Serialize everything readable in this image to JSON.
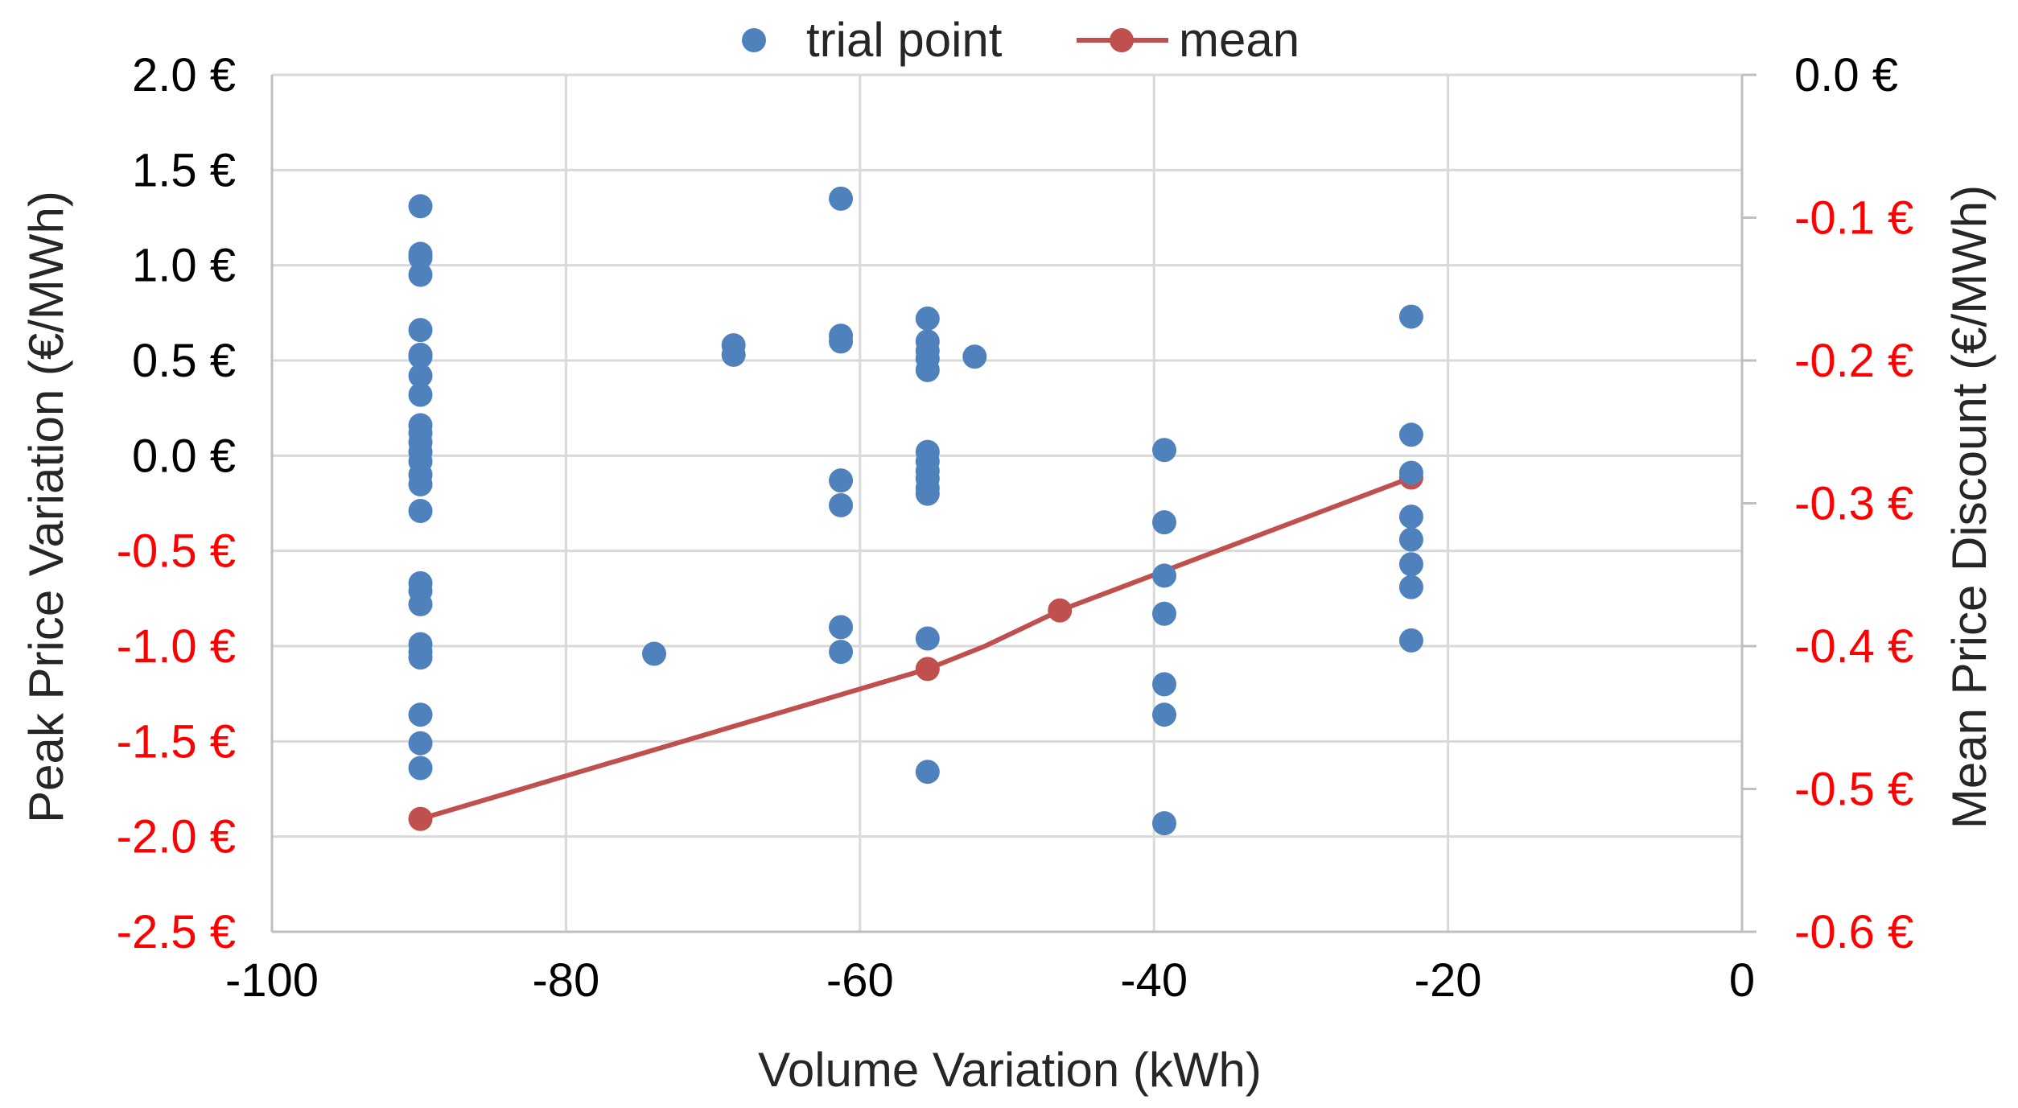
{
  "chart_data": {
    "type": "scatter",
    "title": "",
    "xlabel": "Volume Variation (kWh)",
    "ylabel": "Peak Price Variation (€/MWh)",
    "y2label": "Mean Price Discount (€/MWh)",
    "xlim": [
      -100,
      0
    ],
    "ylim": [
      -2.5,
      2.0
    ],
    "y2lim": [
      -0.6,
      0.0
    ],
    "grid": true,
    "legend_position": "top-center",
    "x_ticks": [
      {
        "value": -100,
        "label": "-100"
      },
      {
        "value": -80,
        "label": "-80"
      },
      {
        "value": -60,
        "label": "-60"
      },
      {
        "value": -40,
        "label": "-40"
      },
      {
        "value": -20,
        "label": "-20"
      },
      {
        "value": 0,
        "label": "0"
      }
    ],
    "y_ticks": [
      {
        "value": 2.0,
        "label": "2.0 €",
        "color": "#000000"
      },
      {
        "value": 1.5,
        "label": "1.5 €",
        "color": "#000000"
      },
      {
        "value": 1.0,
        "label": "1.0 €",
        "color": "#000000"
      },
      {
        "value": 0.5,
        "label": "0.5 €",
        "color": "#000000"
      },
      {
        "value": 0.0,
        "label": "0.0 €",
        "color": "#000000"
      },
      {
        "value": -0.5,
        "label": "-0.5 €",
        "color": "#ff0000"
      },
      {
        "value": -1.0,
        "label": "-1.0 €",
        "color": "#ff0000"
      },
      {
        "value": -1.5,
        "label": "-1.5 €",
        "color": "#ff0000"
      },
      {
        "value": -2.0,
        "label": "-2.0 €",
        "color": "#ff0000"
      },
      {
        "value": -2.5,
        "label": "-2.5 €",
        "color": "#ff0000"
      }
    ],
    "y2_ticks": [
      {
        "value": 0.0,
        "label": "0.0 €",
        "color": "#000000"
      },
      {
        "value": -0.1,
        "label": "-0.1 €",
        "color": "#ff0000"
      },
      {
        "value": -0.2,
        "label": "-0.2 €",
        "color": "#ff0000"
      },
      {
        "value": -0.3,
        "label": "-0.3 €",
        "color": "#ff0000"
      },
      {
        "value": -0.4,
        "label": "-0.4 €",
        "color": "#ff0000"
      },
      {
        "value": -0.5,
        "label": "-0.5 €",
        "color": "#ff0000"
      },
      {
        "value": -0.6,
        "label": "-0.6 €",
        "color": "#ff0000"
      }
    ],
    "series": [
      {
        "name": "trial point",
        "type": "scatter",
        "axis": "left",
        "color": "#4f81bd",
        "points": [
          [
            -89.9,
            1.31
          ],
          [
            -89.9,
            1.06
          ],
          [
            -89.9,
            1.04
          ],
          [
            -89.9,
            0.95
          ],
          [
            -89.9,
            0.66
          ],
          [
            -89.9,
            0.53
          ],
          [
            -89.9,
            0.52
          ],
          [
            -89.9,
            0.42
          ],
          [
            -89.9,
            0.32
          ],
          [
            -89.9,
            0.16
          ],
          [
            -89.9,
            0.12
          ],
          [
            -89.9,
            0.07
          ],
          [
            -89.9,
            0.02
          ],
          [
            -89.9,
            -0.03
          ],
          [
            -89.9,
            -0.1
          ],
          [
            -89.9,
            -0.15
          ],
          [
            -89.9,
            -0.29
          ],
          [
            -89.9,
            -0.67
          ],
          [
            -89.9,
            -0.71
          ],
          [
            -89.9,
            -0.78
          ],
          [
            -89.9,
            -0.99
          ],
          [
            -89.9,
            -1.03
          ],
          [
            -89.9,
            -1.06
          ],
          [
            -89.9,
            -1.36
          ],
          [
            -89.9,
            -1.51
          ],
          [
            -89.9,
            -1.64
          ],
          [
            -74.0,
            -1.04
          ],
          [
            -68.6,
            0.58
          ],
          [
            -68.6,
            0.53
          ],
          [
            -61.3,
            1.35
          ],
          [
            -61.3,
            0.63
          ],
          [
            -61.3,
            0.6
          ],
          [
            -61.3,
            -0.13
          ],
          [
            -61.3,
            -0.26
          ],
          [
            -61.3,
            -0.9
          ],
          [
            -61.3,
            -1.03
          ],
          [
            -55.4,
            0.72
          ],
          [
            -55.4,
            0.6
          ],
          [
            -55.4,
            0.55
          ],
          [
            -55.4,
            0.51
          ],
          [
            -55.4,
            0.45
          ],
          [
            -55.4,
            0.02
          ],
          [
            -55.4,
            -0.03
          ],
          [
            -55.4,
            -0.08
          ],
          [
            -55.4,
            -0.12
          ],
          [
            -55.4,
            -0.17
          ],
          [
            -55.4,
            -0.2
          ],
          [
            -55.4,
            -0.96
          ],
          [
            -55.4,
            -1.66
          ],
          [
            -52.2,
            0.52
          ],
          [
            -39.3,
            0.03
          ],
          [
            -39.3,
            -0.35
          ],
          [
            -39.3,
            -0.63
          ],
          [
            -39.3,
            -0.83
          ],
          [
            -39.3,
            -1.2
          ],
          [
            -39.3,
            -1.36
          ],
          [
            -39.3,
            -1.93
          ],
          [
            -22.5,
            0.73
          ],
          [
            -22.5,
            0.11
          ],
          [
            -22.5,
            -0.09
          ],
          [
            -22.5,
            -0.32
          ],
          [
            -22.5,
            -0.44
          ],
          [
            -22.5,
            -0.57
          ],
          [
            -22.5,
            -0.69
          ],
          [
            -22.5,
            -0.97
          ]
        ]
      },
      {
        "name": "mean",
        "type": "line",
        "axis": "right",
        "color": "#c0504d",
        "points": [
          [
            -89.9,
            -0.521
          ],
          [
            -55.4,
            -0.416
          ],
          [
            -46.4,
            -0.375
          ],
          [
            -22.5,
            -0.282
          ]
        ],
        "line_points": [
          [
            -89.9,
            -0.521
          ],
          [
            -55.4,
            -0.416
          ],
          [
            -51.5,
            -0.4
          ],
          [
            -46.4,
            -0.375
          ],
          [
            -22.5,
            -0.282
          ]
        ]
      }
    ]
  }
}
